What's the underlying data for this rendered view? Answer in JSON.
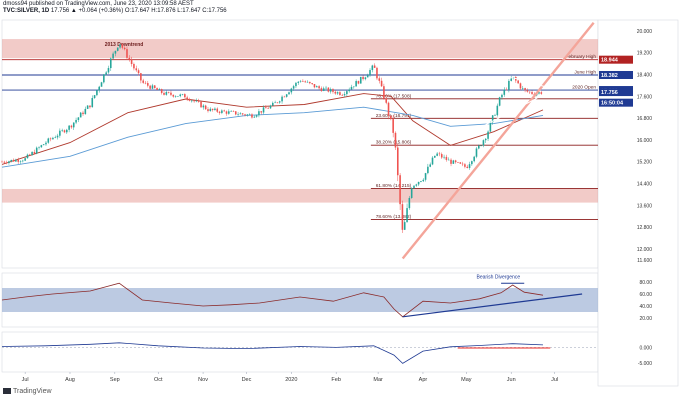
{
  "header": {
    "author_line": "dmoss94 published on TradingView.com, June 23, 2020 13:09:58 AEST",
    "symbol": "TVC:SILVER, 1D",
    "ohlc": "17.756 ▲ +0.064 (+0.36%) O:17.647 H:17.876 L:17.647 C:17.756"
  },
  "watermark": "TradingView",
  "colors": {
    "up": "#26a69a",
    "down": "#ef5350",
    "support_line": "#8b1a1a",
    "trend_line": "#1f3a93",
    "resistance_band": "#e8a09a",
    "ma_short": "#b03a2e",
    "ma_long": "#5b9bd5",
    "rsi_band": "#9fb4d6",
    "current_price_tag": "#1f3a93",
    "high_tag": "#b22222"
  },
  "chart_data": [
    {
      "type": "line",
      "title": "",
      "y_axis": {
        "ticks": [
          "20.000",
          "19.200",
          "18.400",
          "17.600",
          "16.800",
          "16.000",
          "15.200",
          "14.400",
          "13.600",
          "12.800",
          "12.000",
          "11.600"
        ],
        "tick_values": [
          20.0,
          19.2,
          18.4,
          17.6,
          16.8,
          16.0,
          15.2,
          14.4,
          13.6,
          12.8,
          12.0,
          11.6
        ],
        "ylim": [
          11.3,
          20.4
        ]
      },
      "x_axis": {
        "labels": [
          "Jul",
          "Aug",
          "Sep",
          "Oct",
          "Nov",
          "Dec",
          "2020",
          "Feb",
          "Mar",
          "Apr",
          "May",
          "Jun",
          "Jul"
        ],
        "label_dates": [
          "2019-07-01",
          "2019-08-01",
          "2019-09-01",
          "2019-10-01",
          "2019-11-01",
          "2019-12-01",
          "2020-01-01",
          "2020-02-01",
          "2020-03-01",
          "2020-04-01",
          "2020-05-01",
          "2020-06-01",
          "2020-07-01"
        ],
        "range": [
          "2019-06-15",
          "2020-07-31"
        ]
      },
      "price_series": {
        "name": "TVC:SILVER",
        "x": [
          "2019-06-15",
          "2019-07-01",
          "2019-07-15",
          "2019-08-01",
          "2019-08-15",
          "2019-09-04",
          "2019-09-20",
          "2019-10-05",
          "2019-10-20",
          "2019-11-05",
          "2019-11-20",
          "2019-12-05",
          "2019-12-20",
          "2020-01-07",
          "2020-01-20",
          "2020-02-05",
          "2020-02-20",
          "2020-02-27",
          "2020-03-05",
          "2020-03-12",
          "2020-03-18",
          "2020-03-24",
          "2020-04-01",
          "2020-04-10",
          "2020-04-20",
          "2020-05-01",
          "2020-05-15",
          "2020-05-25",
          "2020-06-02",
          "2020-06-10",
          "2020-06-17",
          "2020-06-23"
        ],
        "close": [
          15.2,
          15.3,
          15.9,
          16.5,
          17.3,
          19.6,
          18.1,
          17.7,
          17.6,
          17.1,
          17.0,
          16.9,
          17.3,
          18.2,
          17.9,
          17.7,
          18.3,
          18.7,
          17.6,
          16.2,
          12.5,
          14.3,
          14.6,
          15.5,
          15.2,
          15.0,
          16.2,
          17.6,
          18.3,
          17.8,
          17.7,
          17.756
        ]
      },
      "ma_series": [
        {
          "name": "",
          "x": [
            "2019-06-15",
            "2019-08-01",
            "2019-09-10",
            "2019-10-20",
            "2019-12-01",
            "2020-01-10",
            "2020-02-20",
            "2020-03-10",
            "2020-03-25",
            "2020-04-20",
            "2020-05-20",
            "2020-06-23"
          ],
          "values": [
            15.1,
            15.9,
            17.0,
            17.5,
            17.2,
            17.3,
            17.7,
            17.6,
            16.7,
            15.8,
            16.3,
            17.1
          ]
        },
        {
          "name": "",
          "x": [
            "2019-06-15",
            "2019-08-01",
            "2019-09-10",
            "2019-10-20",
            "2019-12-01",
            "2020-01-10",
            "2020-02-20",
            "2020-03-25",
            "2020-04-20",
            "2020-05-20",
            "2020-06-23"
          ],
          "values": [
            15.0,
            15.4,
            16.1,
            16.6,
            16.9,
            17.0,
            17.2,
            16.9,
            16.5,
            16.6,
            16.9
          ]
        }
      ],
      "horizontal_levels": [
        {
          "label": "February High",
          "value": 18.944
        },
        {
          "label": "June High",
          "value": 18.382
        },
        {
          "label": "2020 Open",
          "value": 17.83
        },
        {
          "label": "76.40% (17.508)",
          "value": 17.508
        },
        {
          "label": "23.60% (16.791)",
          "value": 16.791
        },
        {
          "label": "38.20% (15.806)",
          "value": 15.806
        },
        {
          "label": "61.80% (14.215)",
          "value": 14.215
        },
        {
          "label": "78.60% (13.082)",
          "value": 13.082
        }
      ],
      "zones": [
        {
          "label": "",
          "from": 13.7,
          "to": 14.2
        },
        {
          "label": "2013 Downtrend",
          "from": 19.0,
          "to": 19.7
        }
      ],
      "annotations": [
        "2013 Downtrend"
      ],
      "price_tags": [
        {
          "text": "18.944",
          "value": 18.944,
          "color": "#b22222"
        },
        {
          "text": "18.382",
          "value": 18.382,
          "color": "#1f3a93"
        },
        {
          "text": "17.830",
          "value": 17.83,
          "color": "#1f3a93"
        },
        {
          "text": "17.756",
          "value": 17.756,
          "color": "#1f3a93"
        },
        {
          "text": "16:50:04",
          "value": 17.55,
          "color": "#1f3a93"
        }
      ]
    },
    {
      "type": "line",
      "title": "",
      "y_axis": {
        "ticks": [
          "80.00",
          "60.00",
          "40.00",
          "20.00"
        ],
        "tick_values": [
          80,
          60,
          40,
          20
        ],
        "ylim": [
          5,
          95
        ]
      },
      "band": [
        30,
        70
      ],
      "series": [
        {
          "name": "",
          "x": [
            "2019-06-15",
            "2019-07-01",
            "2019-07-20",
            "2019-08-15",
            "2019-09-04",
            "2019-09-20",
            "2019-10-10",
            "2019-11-01",
            "2019-11-20",
            "2019-12-10",
            "2020-01-07",
            "2020-01-30",
            "2020-02-20",
            "2020-03-05",
            "2020-03-12",
            "2020-03-18",
            "2020-04-01",
            "2020-04-20",
            "2020-05-10",
            "2020-05-25",
            "2020-06-02",
            "2020-06-10",
            "2020-06-23"
          ],
          "values": [
            50,
            55,
            60,
            65,
            78,
            50,
            45,
            40,
            42,
            45,
            55,
            48,
            62,
            55,
            35,
            22,
            48,
            45,
            52,
            62,
            75,
            63,
            58
          ]
        }
      ],
      "annotations": [
        "Bearish Divergence"
      ]
    },
    {
      "type": "line",
      "title": "",
      "y_axis": {
        "ticks": [
          "0.000",
          "-5.000"
        ],
        "tick_values": [
          0,
          -5
        ],
        "ylim": [
          -8,
          5
        ]
      },
      "series": [
        {
          "name": "",
          "x": [
            "2019-06-15",
            "2019-07-15",
            "2019-08-15",
            "2019-09-04",
            "2019-10-01",
            "2019-11-01",
            "2019-12-01",
            "2020-01-07",
            "2020-02-01",
            "2020-02-27",
            "2020-03-12",
            "2020-03-18",
            "2020-04-01",
            "2020-04-20",
            "2020-05-10",
            "2020-06-02",
            "2020-06-23"
          ],
          "values": [
            0.3,
            0.5,
            1.0,
            1.5,
            0.5,
            -0.2,
            -0.4,
            0.3,
            0.0,
            0.5,
            -2.5,
            -5.2,
            -1.2,
            0.2,
            0.6,
            1.2,
            0.8
          ]
        }
      ]
    }
  ]
}
